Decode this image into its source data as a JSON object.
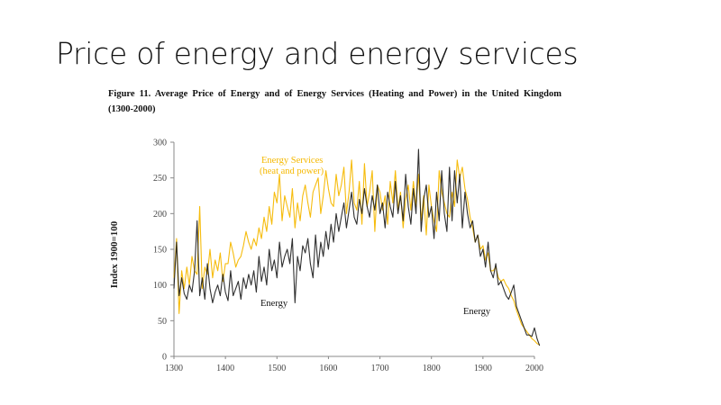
{
  "slide": {
    "title": "Price of energy and energy services"
  },
  "figure": {
    "caption": "Figure 11. Average Price of Energy and of Energy Services (Heating and Power) in the United Kingdom (1300-2000)"
  },
  "colors": {
    "energy": "#1a1a1a",
    "services": "#f5b800",
    "axis": "#888888"
  },
  "chart_data": {
    "type": "line",
    "title": "Average Price of Energy and of Energy Services (Heating and Power) in the United Kingdom (1300-2000)",
    "xlabel": "",
    "ylabel": "Index 1900=100",
    "xlim": [
      1300,
      2000
    ],
    "ylim": [
      0,
      300
    ],
    "xticks": [
      1300,
      1400,
      1500,
      1600,
      1700,
      1800,
      1900,
      2000
    ],
    "yticks": [
      0,
      50,
      100,
      150,
      200,
      250,
      300
    ],
    "grid": false,
    "legend": "none (inline annotations)",
    "annotations": [
      {
        "text": "Energy Services",
        "series": "Energy Services (heat and power)",
        "line": 1
      },
      {
        "text": "(heat and power)",
        "series": "Energy Services (heat and power)",
        "line": 2
      },
      {
        "text": "Energy",
        "series": "Energy",
        "near_year": 1470
      },
      {
        "text": "Energy",
        "series": "Energy",
        "near_year": 1935
      }
    ],
    "x_step": 5,
    "x_start": 1300,
    "series": [
      {
        "name": "Energy",
        "values": [
          95,
          160,
          85,
          110,
          88,
          80,
          100,
          90,
          120,
          190,
          85,
          110,
          80,
          130,
          95,
          75,
          90,
          100,
          85,
          115,
          90,
          78,
          120,
          85,
          95,
          105,
          80,
          110,
          95,
          115,
          100,
          120,
          90,
          140,
          105,
          125,
          100,
          150,
          120,
          135,
          110,
          160,
          125,
          140,
          150,
          130,
          165,
          75,
          140,
          120,
          155,
          145,
          165,
          130,
          110,
          170,
          125,
          160,
          140,
          175,
          150,
          185,
          160,
          200,
          175,
          195,
          215,
          180,
          205,
          230,
          195,
          185,
          220,
          200,
          235,
          210,
          195,
          225,
          205,
          240,
          200,
          215,
          180,
          230,
          210,
          195,
          245,
          200,
          225,
          190,
          255,
          210,
          185,
          235,
          200,
          290,
          175,
          220,
          240,
          195,
          210,
          165,
          230,
          190,
          260,
          200,
          175,
          265,
          190,
          260,
          215,
          255,
          180,
          230,
          200,
          180,
          190,
          160,
          170,
          140,
          150,
          125,
          160,
          120,
          110,
          130,
          100,
          105,
          95,
          85,
          80,
          90,
          100,
          70,
          60,
          50,
          40,
          30,
          30,
          28,
          40,
          25,
          15
        ]
      },
      {
        "name": "Energy Services (heat and power)",
        "values": [
          110,
          165,
          60,
          120,
          95,
          125,
          100,
          140,
          120,
          115,
          210,
          95,
          125,
          115,
          150,
          110,
          135,
          120,
          145,
          105,
          130,
          130,
          160,
          145,
          125,
          135,
          140,
          155,
          175,
          160,
          150,
          165,
          155,
          180,
          165,
          195,
          175,
          210,
          185,
          230,
          215,
          255,
          190,
          225,
          210,
          195,
          235,
          180,
          215,
          190,
          225,
          240,
          215,
          195,
          230,
          240,
          250,
          200,
          225,
          260,
          235,
          215,
          210,
          255,
          225,
          240,
          265,
          200,
          230,
          275,
          215,
          205,
          245,
          185,
          270,
          210,
          230,
          260,
          175,
          240,
          230,
          205,
          225,
          185,
          245,
          215,
          260,
          205,
          230,
          180,
          220,
          240,
          205,
          245,
          210,
          255,
          190,
          225,
          170,
          240,
          210,
          190,
          175,
          260,
          230,
          215,
          200,
          195,
          230,
          210,
          275,
          250,
          265,
          235,
          220,
          195,
          180,
          160,
          170,
          150,
          155,
          135,
          145,
          120,
          120,
          125,
          110,
          105,
          108,
          100,
          95,
          85,
          78,
          65,
          55,
          45,
          40,
          35,
          30,
          25,
          22,
          18,
          16
        ]
      }
    ]
  }
}
